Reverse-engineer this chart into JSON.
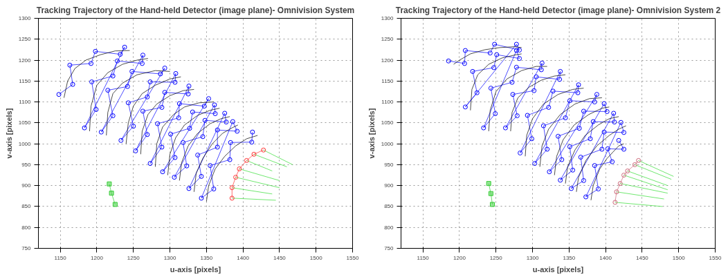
{
  "chart_data": [
    {
      "type": "line",
      "title": "Tracking Trajectory of the Hand-held Detector (image plane)- Omnivision System",
      "xlabel": "u-axis [pixels]",
      "ylabel": "v-axis [pixels]",
      "xlim": [
        1120,
        1550
      ],
      "ylim": [
        750,
        1300
      ],
      "xticks": [
        1150,
        1200,
        1250,
        1300,
        1350,
        1400,
        1450,
        1500,
        1550
      ],
      "yticks": [
        750,
        800,
        850,
        900,
        950,
        1000,
        1050,
        1100,
        1150,
        1200,
        1250,
        1300
      ],
      "grid": true,
      "series": [
        {
          "color": "#0000ff",
          "marker": "circle",
          "x": [
            1148,
            1167,
            1163,
            1192,
            1198,
            1232,
            1238,
            1183,
            1199,
            1193,
            1222,
            1228,
            1262,
            1263,
            1206,
            1222,
            1215,
            1242,
            1248,
            1287,
            1293,
            1233,
            1250,
            1243,
            1269,
            1273,
            1307,
            1308,
            1253,
            1269,
            1263,
            1289,
            1293,
            1325,
            1326,
            1273,
            1289,
            1283,
            1312,
            1313,
            1347,
            1353,
            1290,
            1307,
            1301,
            1327,
            1331,
            1362,
            1361,
            1306,
            1323,
            1318,
            1345,
            1348,
            1377,
            1375,
            1326,
            1343,
            1338,
            1365,
            1365,
            1392,
            1386,
            1343,
            1360,
            1355,
            1382,
            1383,
            1412,
            1413
          ],
          "values": [
            1118,
            1142,
            1188,
            1192,
            1221,
            1214,
            1231,
            1038,
            1082,
            1148,
            1162,
            1198,
            1192,
            1212,
            1028,
            1067,
            1128,
            1137,
            1173,
            1167,
            1181,
            1008,
            1042,
            1098,
            1112,
            1148,
            1147,
            1168,
            983,
            1022,
            1078,
            1087,
            1123,
            1119,
            1138,
            953,
            992,
            1048,
            1062,
            1096,
            1090,
            1108,
            933,
            967,
            1023,
            1037,
            1076,
            1072,
            1093,
            920,
            947,
            1003,
            1017,
            1056,
            1052,
            1073,
            893,
            922,
            973,
            992,
            1033,
            1030,
            1053,
            870,
            892,
            948,
            962,
            1003,
            1004,
            1028
          ]
        },
        {
          "color": "#000000",
          "x": [
            1155,
            1160,
            1170,
            1185,
            1205,
            1225,
            1245
          ],
          "values": [
            1110,
            1150,
            1180,
            1200,
            1213,
            1222,
            1223
          ]
        },
        {
          "color": "#000000",
          "x": [
            1190,
            1192,
            1200,
            1215,
            1235,
            1255,
            1270
          ],
          "values": [
            1030,
            1090,
            1140,
            1170,
            1190,
            1200,
            1204
          ]
        },
        {
          "color": "#000000",
          "x": [
            1213,
            1215,
            1222,
            1235,
            1255,
            1280,
            1300
          ],
          "values": [
            1020,
            1075,
            1120,
            1145,
            1165,
            1175,
            1173
          ]
        },
        {
          "color": "#000000",
          "x": [
            1240,
            1243,
            1250,
            1262,
            1280,
            1300,
            1315
          ],
          "values": [
            1000,
            1050,
            1090,
            1120,
            1140,
            1155,
            1160
          ]
        },
        {
          "color": "#000000",
          "x": [
            1260,
            1262,
            1270,
            1282,
            1300,
            1318,
            1333
          ],
          "values": [
            975,
            1030,
            1070,
            1095,
            1115,
            1127,
            1130
          ]
        },
        {
          "color": "#000000",
          "x": [
            1280,
            1282,
            1290,
            1305,
            1320,
            1340,
            1360
          ],
          "values": [
            945,
            1000,
            1040,
            1070,
            1088,
            1098,
            1100
          ]
        },
        {
          "color": "#000000",
          "x": [
            1297,
            1300,
            1308,
            1320,
            1338,
            1355,
            1368
          ],
          "values": [
            925,
            975,
            1015,
            1045,
            1068,
            1080,
            1085
          ]
        },
        {
          "color": "#000000",
          "x": [
            1313,
            1316,
            1325,
            1338,
            1355,
            1370,
            1382
          ],
          "values": [
            912,
            955,
            995,
            1025,
            1048,
            1060,
            1065
          ]
        },
        {
          "color": "#000000",
          "x": [
            1333,
            1336,
            1345,
            1358,
            1372,
            1385,
            1393
          ],
          "values": [
            885,
            930,
            965,
            1000,
            1025,
            1038,
            1045
          ]
        },
        {
          "color": "#000000",
          "x": [
            1350,
            1353,
            1362,
            1375,
            1390,
            1405,
            1420
          ],
          "values": [
            862,
            900,
            940,
            970,
            995,
            1012,
            1020
          ]
        },
        {
          "color": "#33dd33",
          "x": [
            1385,
            1445
          ],
          "values": [
            870,
            865
          ]
        },
        {
          "color": "#33dd33",
          "x": [
            1385,
            1440
          ],
          "values": [
            895,
            880
          ]
        },
        {
          "color": "#33dd33",
          "x": [
            1390,
            1450
          ],
          "values": [
            920,
            895
          ]
        },
        {
          "color": "#33dd33",
          "x": [
            1395,
            1450
          ],
          "values": [
            940,
            912
          ]
        },
        {
          "color": "#33dd33",
          "x": [
            1405,
            1440
          ],
          "values": [
            960,
            935
          ]
        },
        {
          "color": "#33dd33",
          "x": [
            1415,
            1460
          ],
          "values": [
            975,
            945
          ]
        },
        {
          "color": "#33dd33",
          "x": [
            1428,
            1468
          ],
          "values": [
            985,
            950
          ]
        },
        {
          "color": "#ff3333",
          "marker": "circle",
          "x": [
            1385,
            1385,
            1390,
            1395,
            1405,
            1415,
            1428
          ],
          "values": [
            870,
            895,
            920,
            940,
            960,
            975,
            985
          ]
        },
        {
          "color": "#33cc33",
          "marker": "square",
          "x": [
            1217,
            1220,
            1225
          ],
          "values": [
            904,
            882,
            855
          ]
        }
      ]
    },
    {
      "type": "line",
      "title": "Tracking Trajectory of the Hand-held Detector (image plane)- Omnivision System 2",
      "xlabel": "u-axis [pixels]",
      "ylabel": "v-axis [pixels]",
      "xlim": [
        1120,
        1550
      ],
      "ylim": [
        750,
        1300
      ],
      "xticks": [
        1150,
        1200,
        1250,
        1300,
        1350,
        1400,
        1450,
        1500,
        1550
      ],
      "yticks": [
        750,
        800,
        850,
        900,
        950,
        1000,
        1050,
        1100,
        1150,
        1200,
        1250,
        1300
      ],
      "grid": true,
      "series": [
        {
          "color": "#0000ff",
          "marker": "circle",
          "x": [
            1185,
            1207,
            1208,
            1242,
            1248,
            1282,
            1278,
            1208,
            1224,
            1218,
            1247,
            1251,
            1282,
            1278,
            1233,
            1249,
            1243,
            1272,
            1278,
            1312,
            1313,
            1263,
            1279,
            1273,
            1302,
            1305,
            1337,
            1338,
            1283,
            1299,
            1293,
            1322,
            1328,
            1362,
            1363,
            1303,
            1320,
            1315,
            1345,
            1351,
            1385,
            1388,
            1323,
            1340,
            1335,
            1364,
            1370,
            1402,
            1398,
            1338,
            1355,
            1351,
            1379,
            1383,
            1412,
            1411,
            1353,
            1370,
            1366,
            1395,
            1398,
            1425,
            1421,
            1373,
            1390,
            1385,
            1409,
            1403,
            1425,
            1418
          ],
          "values": [
            1198,
            1192,
            1223,
            1217,
            1238,
            1224,
            1238,
            1088,
            1122,
            1173,
            1182,
            1213,
            1204,
            1223,
            1038,
            1072,
            1133,
            1147,
            1183,
            1177,
            1193,
            1038,
            1067,
            1118,
            1127,
            1160,
            1154,
            1173,
            978,
            1012,
            1068,
            1087,
            1126,
            1122,
            1141,
            953,
            987,
            1043,
            1062,
            1103,
            1100,
            1118,
            933,
            962,
            1018,
            1037,
            1078,
            1077,
            1096,
            913,
            937,
            993,
            1012,
            1053,
            1052,
            1073,
            893,
            912,
            968,
            987,
            1028,
            1027,
            1051,
            873,
            892,
            948,
            957,
            988,
            987,
            1008
          ]
        },
        {
          "color": "#000000",
          "x": [
            1192,
            1200,
            1215,
            1235,
            1255,
            1275,
            1285
          ],
          "values": [
            1190,
            1200,
            1215,
            1225,
            1230,
            1232,
            1230
          ]
        },
        {
          "color": "#000000",
          "x": [
            1215,
            1217,
            1225,
            1240,
            1258,
            1275,
            1285
          ],
          "values": [
            1080,
            1130,
            1165,
            1190,
            1205,
            1212,
            1215
          ]
        },
        {
          "color": "#000000",
          "x": [
            1240,
            1242,
            1250,
            1265,
            1285,
            1305,
            1320
          ],
          "values": [
            1030,
            1080,
            1125,
            1155,
            1175,
            1185,
            1185
          ]
        },
        {
          "color": "#000000",
          "x": [
            1270,
            1272,
            1280,
            1295,
            1312,
            1330,
            1345
          ],
          "values": [
            1030,
            1075,
            1110,
            1135,
            1152,
            1162,
            1165
          ]
        },
        {
          "color": "#000000",
          "x": [
            1290,
            1292,
            1300,
            1315,
            1335,
            1355,
            1370
          ],
          "values": [
            970,
            1020,
            1060,
            1095,
            1118,
            1130,
            1133
          ]
        },
        {
          "color": "#000000",
          "x": [
            1310,
            1313,
            1322,
            1338,
            1358,
            1378,
            1395
          ],
          "values": [
            945,
            995,
            1035,
            1070,
            1095,
            1108,
            1110
          ]
        },
        {
          "color": "#000000",
          "x": [
            1330,
            1333,
            1342,
            1357,
            1377,
            1395,
            1405
          ],
          "values": [
            925,
            970,
            1010,
            1045,
            1070,
            1085,
            1088
          ]
        },
        {
          "color": "#000000",
          "x": [
            1345,
            1348,
            1358,
            1372,
            1390,
            1405,
            1418
          ],
          "values": [
            905,
            945,
            985,
            1020,
            1045,
            1060,
            1065
          ]
        },
        {
          "color": "#000000",
          "x": [
            1360,
            1363,
            1373,
            1388,
            1405,
            1418,
            1428
          ],
          "values": [
            885,
            920,
            960,
            995,
            1020,
            1035,
            1043
          ]
        },
        {
          "color": "#000000",
          "x": [
            1380,
            1383,
            1392,
            1402,
            1410,
            1418,
            1425
          ],
          "values": [
            865,
            900,
            940,
            965,
            980,
            995,
            1000
          ]
        },
        {
          "color": "#33dd33",
          "x": [
            1413,
            1478
          ],
          "values": [
            860,
            850
          ]
        },
        {
          "color": "#33dd33",
          "x": [
            1415,
            1480
          ],
          "values": [
            885,
            868
          ]
        },
        {
          "color": "#33dd33",
          "x": [
            1420,
            1485
          ],
          "values": [
            905,
            882
          ]
        },
        {
          "color": "#33dd33",
          "x": [
            1425,
            1485
          ],
          "values": [
            925,
            890
          ]
        },
        {
          "color": "#33dd33",
          "x": [
            1430,
            1485
          ],
          "values": [
            935,
            900
          ]
        },
        {
          "color": "#33dd33",
          "x": [
            1440,
            1490
          ],
          "values": [
            950,
            915
          ]
        },
        {
          "color": "#33dd33",
          "x": [
            1445,
            1493
          ],
          "values": [
            960,
            922
          ]
        },
        {
          "color": "#cc6677",
          "marker": "circle",
          "x": [
            1413,
            1415,
            1420,
            1425,
            1430,
            1440,
            1445
          ],
          "values": [
            860,
            885,
            905,
            925,
            935,
            950,
            960
          ]
        },
        {
          "color": "#33cc33",
          "marker": "square",
          "x": [
            1240,
            1243,
            1245
          ],
          "values": [
            905,
            881,
            855
          ]
        }
      ]
    }
  ]
}
